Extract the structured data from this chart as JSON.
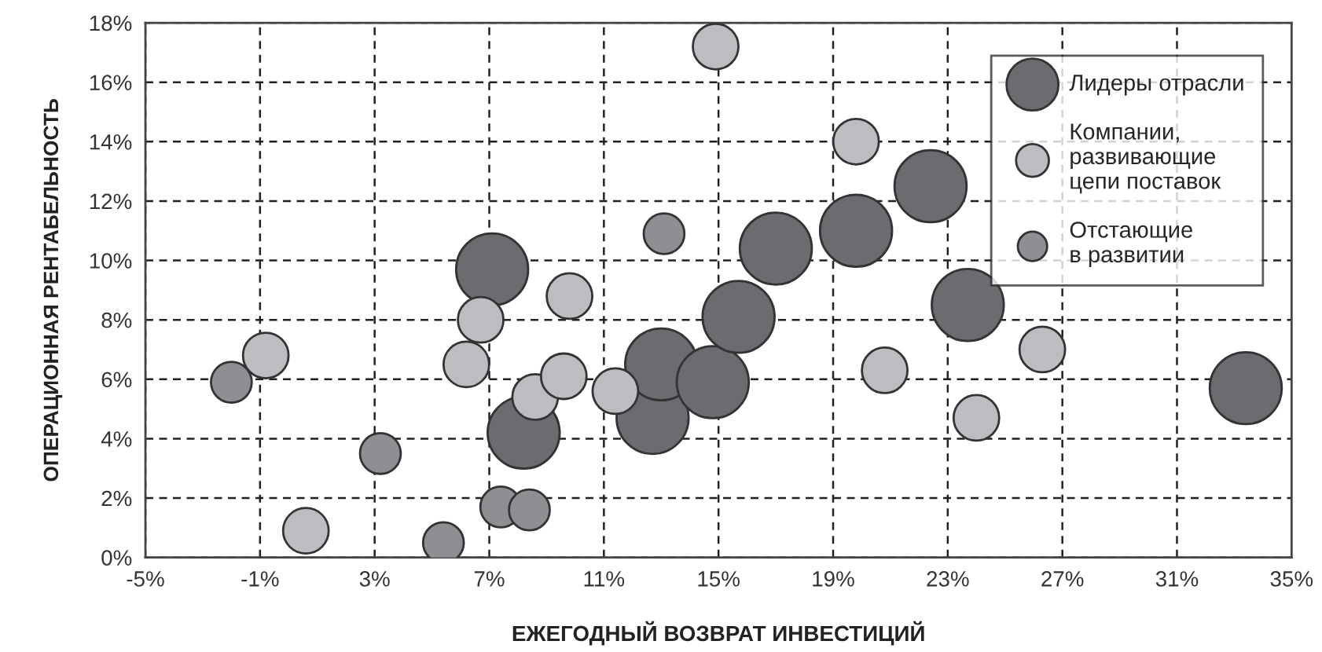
{
  "chart_data": {
    "type": "bubble",
    "xlabel": "ЕЖЕГОДНЫЙ ВОЗВРАТ ИНВЕСТИЦИЙ",
    "ylabel": "ОПЕРАЦИОННАЯ РЕНТАБЕЛЬНОСТЬ",
    "xlim": [
      -5,
      35
    ],
    "ylim": [
      0,
      18
    ],
    "xticks": [
      {
        "value": -5,
        "label": "-5%"
      },
      {
        "value": -1,
        "label": "-1%"
      },
      {
        "value": 3,
        "label": "3%"
      },
      {
        "value": 7,
        "label": "7%"
      },
      {
        "value": 11,
        "label": "11%"
      },
      {
        "value": 15,
        "label": "15%"
      },
      {
        "value": 19,
        "label": "19%"
      },
      {
        "value": 23,
        "label": "23%"
      },
      {
        "value": 27,
        "label": "27%"
      },
      {
        "value": 31,
        "label": "31%"
      },
      {
        "value": 35,
        "label": "35%"
      }
    ],
    "yticks": [
      {
        "value": 0,
        "label": "0%"
      },
      {
        "value": 2,
        "label": "2%"
      },
      {
        "value": 4,
        "label": "4%"
      },
      {
        "value": 6,
        "label": "6%"
      },
      {
        "value": 8,
        "label": "8%"
      },
      {
        "value": 10,
        "label": "10%"
      },
      {
        "value": 12,
        "label": "12%"
      },
      {
        "value": 14,
        "label": "14%"
      },
      {
        "value": 16,
        "label": "16%"
      },
      {
        "value": 18,
        "label": "18%"
      }
    ],
    "grid": true,
    "legend": "top right",
    "series": [
      {
        "name": "Лидеры отрасли",
        "color": "#6b6c70",
        "x": [
          7.1,
          8.2,
          12.7,
          13.0,
          14.8,
          15.7,
          17.0,
          19.8,
          22.4,
          23.7,
          33.4
        ],
        "values": [
          9.7,
          4.2,
          4.7,
          6.5,
          5.9,
          8.1,
          10.4,
          11.0,
          12.5,
          8.5,
          5.7
        ],
        "sizes": [
          1,
          1,
          1,
          1,
          1,
          1,
          1,
          1,
          1,
          1,
          1
        ]
      },
      {
        "name": "Компании,\nразвивающие\nцепи поставок",
        "color": "#bcbdc0",
        "x": [
          14.9,
          19.8,
          20.8,
          26.3,
          24.0,
          9.8,
          6.7,
          6.2,
          8.6,
          9.6,
          11.4,
          -0.8,
          0.6
        ],
        "values": [
          17.2,
          14.0,
          6.3,
          7.0,
          4.7,
          8.8,
          8.0,
          6.5,
          5.4,
          6.1,
          5.6,
          6.8,
          0.9
        ],
        "sizes": [
          0.4,
          0.4,
          0.4,
          0.4,
          0.4,
          0.4,
          0.4,
          0.4,
          0.4,
          0.4,
          0.4,
          0.4,
          0.4
        ]
      },
      {
        "name": "Отстающие\nв развитии",
        "color": "#8e8f92",
        "x": [
          -2.0,
          3.2,
          5.4,
          7.4,
          8.4,
          13.1
        ],
        "values": [
          5.9,
          3.5,
          0.5,
          1.7,
          1.6,
          10.9
        ],
        "sizes": [
          0.32,
          0.32,
          0.32,
          0.32,
          0.32,
          0.32
        ]
      }
    ]
  }
}
